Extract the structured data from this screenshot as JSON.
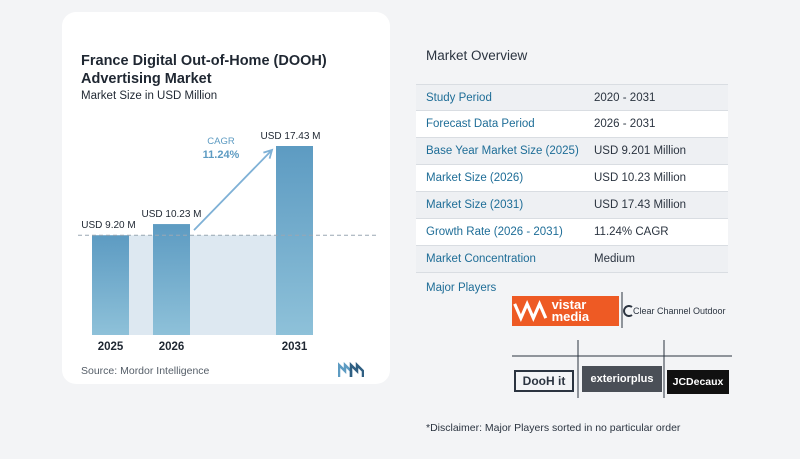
{
  "chart_data": {
    "type": "bar",
    "title": "France Digital Out-of-Home (DOOH) Advertising Market",
    "subtitle": "Market Size in USD Million",
    "categories": [
      "2025",
      "2026",
      "2031"
    ],
    "values": [
      9.2,
      10.23,
      17.43
    ],
    "data_labels": [
      "USD 9.20 M",
      "USD 10.23 M",
      "USD 17.43 M"
    ],
    "cagr_label": "CAGR",
    "cagr_value": "11.24%",
    "ylim": [
      0,
      17.43
    ],
    "colors": {
      "bar_top": "#5d9bc2",
      "bar_bottom": "#8ec1d9",
      "highlight": "#dde8f1",
      "arrow": "#7fb1d6",
      "cagr_text": "#5d9bc2"
    }
  },
  "source": "Source:  Mordor Intelligence",
  "overview": {
    "title": "Market Overview",
    "rows": [
      {
        "label": "Study Period",
        "value": "2020 - 2031"
      },
      {
        "label": "Forecast Data Period",
        "value": "2026 - 2031"
      },
      {
        "label": "Base Year Market Size (2025)",
        "value": "USD 9.201 Million"
      },
      {
        "label": "Market Size (2026)",
        "value": "USD 10.23 Million"
      },
      {
        "label": "Market Size (2031)",
        "value": "USD 17.43 Million"
      },
      {
        "label": "Growth Rate (2026 - 2031)",
        "value": "11.24% CAGR"
      },
      {
        "label": "Market Concentration",
        "value": "Medium"
      }
    ]
  },
  "players": {
    "title": "Major Players",
    "vistar": "vistar media",
    "clear_channel": "Clear Channel Outdoor",
    "dooh_it": "DooH it",
    "exterior_plus": "exteriorplus",
    "jcdecaux": "JCDecaux"
  },
  "disclaimer": "*Disclaimer: Major Players sorted in no particular order"
}
